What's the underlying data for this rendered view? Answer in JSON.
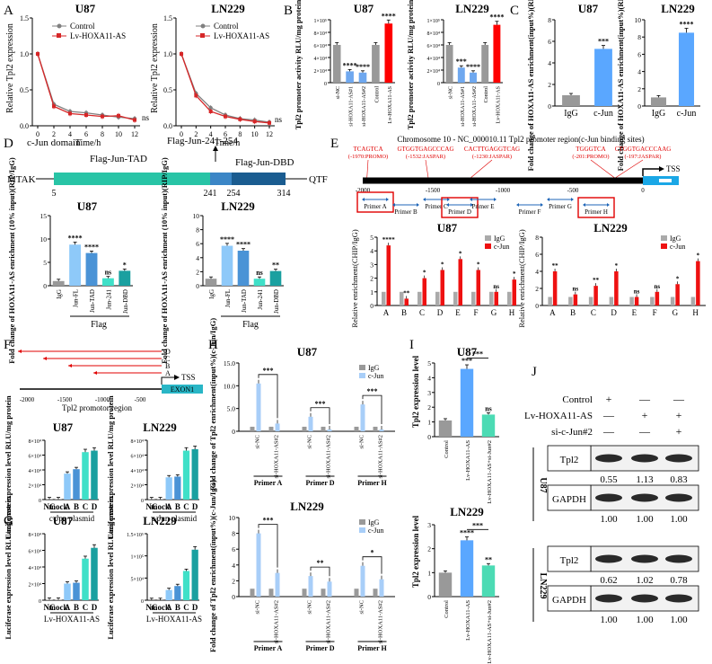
{
  "panels": {
    "A": {
      "label": "A",
      "colors": {
        "control": "#808080",
        "lv": "#d62728"
      },
      "x_ticks": [
        "0",
        "2",
        "4",
        "6",
        "8",
        "10",
        "12"
      ],
      "xlabel": "Time/h",
      "ylabel": "Relative Tpl2 expression",
      "y_ticks": [
        "0.0",
        "0.5",
        "1.0",
        "1.5"
      ],
      "legend": [
        "Control",
        "Lv-HOXA11-AS"
      ],
      "ns": "ns",
      "charts": [
        {
          "title": "U87",
          "control": [
            1.0,
            0.3,
            0.2,
            0.18,
            0.15,
            0.12,
            0.1
          ],
          "lv": [
            1.0,
            0.27,
            0.17,
            0.15,
            0.13,
            0.14,
            0.08
          ]
        },
        {
          "title": "LN229",
          "control": [
            1.0,
            0.45,
            0.25,
            0.15,
            0.1,
            0.08,
            0.05
          ],
          "lv": [
            1.0,
            0.42,
            0.2,
            0.13,
            0.09,
            0.06,
            0.04
          ]
        }
      ]
    },
    "B": {
      "label": "B",
      "ylabel": "Tpl2 promoter activity RLU/mg protein",
      "categories": [
        "si-NC",
        "si-HOXA11-AS#1",
        "si-HOXA11-AS#2",
        "Control",
        "Lv-HOXA11-AS"
      ],
      "colors": [
        "#999999",
        "#6fa8ef",
        "#6fa8ef",
        "#999999",
        "#ff0000"
      ],
      "charts": [
        {
          "title": "U87",
          "values": [
            6,
            1.8,
            1.6,
            6,
            9.4
          ],
          "ymax": 10,
          "y_ticks": [
            "0",
            "2×10⁴",
            "4×10⁴",
            "6×10⁴",
            "8×10⁴",
            "1×10⁵"
          ],
          "stars": [
            "",
            "****",
            "****",
            "",
            "****"
          ]
        },
        {
          "title": "LN229",
          "values": [
            6,
            2.4,
            1.6,
            6,
            9.2
          ],
          "ymax": 10,
          "y_ticks": [
            "0",
            "2×10⁴",
            "4×10⁴",
            "6×10⁴",
            "8×10⁴",
            "1×10⁵"
          ],
          "stars": [
            "",
            "***",
            "****",
            "",
            "****"
          ]
        }
      ]
    },
    "C": {
      "label": "C",
      "ylabel": "Fold change of HOXA11-AS enrichment(input%)(RIP/IgG)",
      "categories": [
        "IgG",
        "c-Jun"
      ],
      "colors": [
        "#999999",
        "#5aa7ff"
      ],
      "charts": [
        {
          "title": "U87",
          "values": [
            1,
            5.3
          ],
          "ymax": 8,
          "y_ticks": [
            "0",
            "2",
            "4",
            "6",
            "8"
          ],
          "stars": [
            "",
            "***"
          ]
        },
        {
          "title": "LN229",
          "values": [
            1,
            8.5
          ],
          "ymax": 10,
          "y_ticks": [
            "0",
            "2",
            "4",
            "6",
            "8",
            "10"
          ],
          "stars": [
            "",
            "****"
          ]
        }
      ]
    },
    "D": {
      "label": "D",
      "domain_title": "c-Jun domain",
      "flag_label": "Flag-Jun-241-254",
      "tad_label": "Flag-Jun-TAD",
      "dbd_label": "Flag-Jun-DBD",
      "left_end": "MTAK",
      "right_end": "QTF",
      "positions": [
        "5",
        "241",
        "254",
        "314"
      ],
      "ylabel": "Fold change of HOXA11-AS enrichment (10% input)(RIP/IgG)",
      "categories": [
        "IgG",
        "Jun-FL",
        "Jun-TAD",
        "Jun-241",
        "Jun-DBD"
      ],
      "colors": [
        "#999999",
        "#8ec9f9",
        "#4a93d6",
        "#3fe0c8",
        "#1aa0a0"
      ],
      "group_label": "Flag",
      "charts": [
        {
          "title": "U87",
          "values": [
            1,
            8.8,
            7,
            1.6,
            3.2
          ],
          "ymax": 15,
          "y_ticks": [
            "0",
            "5",
            "10",
            "15"
          ],
          "stars": [
            "",
            "****",
            "****",
            "ns",
            "*"
          ]
        },
        {
          "title": "LN229",
          "values": [
            1,
            5.7,
            5,
            1,
            2.1
          ],
          "ymax": 10,
          "y_ticks": [
            "0",
            "2",
            "4",
            "6",
            "8",
            "10"
          ],
          "stars": [
            "",
            "****",
            "****",
            "ns",
            "**"
          ]
        }
      ]
    },
    "E": {
      "label": "E",
      "chrom_title": "Chromosome 10 - NC_000010.11    Tpl2 promoter region(c-Jun binding sites)",
      "sites": [
        {
          "seq": "TCAGTCA",
          "pos": "(-1970:PROMO)"
        },
        {
          "seq": "GTGGTGAGCCCAG",
          "pos": "(-1532:JASPAR)"
        },
        {
          "seq": "CACTTGAGGTCAG",
          "pos": "(-1230:JASPAR)"
        },
        {
          "seq": "TGGGTCA",
          "pos": "(-201:PROMO)"
        },
        {
          "seq": "CTGGTGACCCAAG",
          "pos": "(-197:JASPAR)"
        }
      ],
      "tss": "TSS",
      "axis_ticks": [
        "-2000",
        "-1500",
        "-1000",
        "-500",
        "0"
      ],
      "primers": [
        "Primer A",
        "Primer B",
        "Primer C",
        "Primer D",
        "Primer E",
        "Primer F",
        "Primer G",
        "Primer H"
      ],
      "ylabel": "Relative enrichment(CHIP/IgG)",
      "legend": [
        "IgG",
        "c-Jun"
      ],
      "colors": {
        "igg": "#aaaaaa",
        "cjun": "#ee1111"
      },
      "categories": [
        "A",
        "B",
        "C",
        "D",
        "E",
        "F",
        "G",
        "H"
      ],
      "charts": [
        {
          "title": "U87",
          "igg": [
            1,
            1,
            1,
            1,
            1,
            1,
            1,
            1
          ],
          "cjun": [
            4.4,
            0.5,
            2,
            2.6,
            3.4,
            2.6,
            1,
            1.9
          ],
          "ymax": 5,
          "y_ticks": [
            "0",
            "1",
            "2",
            "3",
            "4",
            "5"
          ],
          "stars": [
            "****",
            "**",
            "*",
            "*",
            "*",
            "*",
            "ns",
            "*"
          ]
        },
        {
          "title": "LN229",
          "igg": [
            1,
            1,
            1,
            1,
            1,
            1,
            1,
            1
          ],
          "cjun": [
            4,
            1.3,
            2.3,
            4,
            1,
            1.6,
            2.5,
            5.2
          ],
          "ymax": 8,
          "y_ticks": [
            "0",
            "2",
            "4",
            "6",
            "8"
          ],
          "stars": [
            "**",
            "ns",
            "**",
            "*",
            "ns",
            "ns",
            "*",
            "*"
          ]
        }
      ]
    },
    "F": {
      "label": "F",
      "constructs": [
        "D",
        "C",
        "B",
        "A"
      ],
      "tss": "TSS",
      "exon": "EXON1",
      "axis_ticks": [
        "-2000",
        "-1500",
        "-1000",
        "-500"
      ],
      "region_label": "Tpl2 promotor region",
      "ylabel": "Luciferase expression level RLU/mg protein",
      "categories": [
        "NC",
        "mock",
        "A",
        "B",
        "C",
        "D"
      ],
      "colors": [
        "#999999",
        "#999999",
        "#8ec9f9",
        "#4a93d6",
        "#3fe0c8",
        "#1aa0a0"
      ],
      "group_label": "c-Jun plasmid",
      "charts": [
        {
          "title": "U87",
          "values": [
            0.05,
            0.05,
            3.5,
            4.1,
            6.4,
            6.6
          ],
          "ymax": 8,
          "y_ticks": [
            "0",
            "2×10⁴",
            "4×10⁴",
            "6×10⁴",
            "8×10⁴"
          ]
        },
        {
          "title": "LN229",
          "values": [
            0.05,
            0.05,
            3,
            3.1,
            6.6,
            6.8
          ],
          "ymax": 8,
          "y_ticks": [
            "0",
            "2×10⁴",
            "4×10⁴",
            "6×10⁴",
            "8×10⁴"
          ]
        }
      ]
    },
    "G": {
      "label": "G",
      "ylabel": "Luciferase expression level RLU/mg protein",
      "categories": [
        "NC",
        "mock",
        "A",
        "B",
        "C",
        "D"
      ],
      "colors": [
        "#999999",
        "#999999",
        "#8ec9f9",
        "#4a93d6",
        "#3fe0c8",
        "#1aa0a0"
      ],
      "group_label": "Lv-HOXA11-AS",
      "charts": [
        {
          "title": "U87",
          "values": [
            0.05,
            0.05,
            2,
            2.1,
            5,
            6.3
          ],
          "ymax": 8,
          "y_ticks": [
            "0",
            "2×10⁴",
            "4×10⁴",
            "6×10⁴",
            "8×10⁴"
          ]
        },
        {
          "title": "LN229",
          "values": [
            0.05,
            0.05,
            2.3,
            3.2,
            6.6,
            11.4
          ],
          "ymax": 15,
          "y_ticks": [
            "0",
            "5×10⁴",
            "1×10⁵",
            "1.5×10⁵"
          ]
        }
      ]
    },
    "H": {
      "label": "H",
      "ylabel": "Fold change of Tpl2 enrichment(input%)(c-Jun/IgG)",
      "legend": [
        "IgG",
        "c-Jun"
      ],
      "colors": {
        "igg": "#999999",
        "cjun": "#a8cef8"
      },
      "sub": [
        "si-NC",
        "si-HOXA11-AS#2"
      ],
      "groups": [
        "Primer A",
        "Primer D",
        "Primer H"
      ],
      "charts": [
        {
          "title": "U87",
          "pairs": [
            [
              1,
              10.5
            ],
            [
              1,
              1.7
            ],
            [
              1,
              3.2
            ],
            [
              1,
              0.4
            ],
            [
              1,
              5.9
            ],
            [
              1,
              0.4
            ]
          ],
          "ymax": 15,
          "y_ticks": [
            "0",
            "5.0",
            "10.0",
            "15.0"
          ],
          "brackets": [
            "***",
            "***",
            "***"
          ]
        },
        {
          "title": "LN229",
          "pairs": [
            [
              1,
              8
            ],
            [
              1,
              3
            ],
            [
              1,
              2.6
            ],
            [
              1,
              1.9
            ],
            [
              1,
              3.9
            ],
            [
              1,
              2.2
            ]
          ],
          "ymax": 10,
          "y_ticks": [
            "0",
            "2",
            "4",
            "6",
            "8",
            "10"
          ],
          "brackets": [
            "***",
            "**",
            "*"
          ]
        }
      ]
    },
    "I": {
      "label": "I",
      "ylabel": "Tpl2 expression level",
      "categories": [
        "Control",
        "Lv-HOXA11-AS",
        "Lv-HOXA11-AS+si-Jun#2"
      ],
      "colors": [
        "#999999",
        "#5aa7ff",
        "#4cdbb4"
      ],
      "charts": [
        {
          "title": "U87",
          "values": [
            1.1,
            4.6,
            1.5
          ],
          "ymax": 5,
          "y_ticks": [
            "0",
            "1",
            "2",
            "3",
            "4",
            "5"
          ],
          "stars": [
            "",
            "***",
            "ns"
          ],
          "bracket": "***"
        },
        {
          "title": "LN229",
          "values": [
            1,
            2.35,
            1.3
          ],
          "ymax": 3,
          "y_ticks": [
            "0",
            "1",
            "2",
            "3"
          ],
          "stars": [
            "",
            "****",
            "**"
          ],
          "bracket": "***"
        }
      ]
    },
    "J": {
      "label": "J",
      "rows": [
        "Control",
        "Lv-HOXA11-AS",
        "si-c-Jun#2"
      ],
      "marks": [
        [
          "+",
          "—",
          "—"
        ],
        [
          "—",
          "+",
          "+"
        ],
        [
          "—",
          "—",
          "+"
        ]
      ],
      "cell_lines": [
        "U87",
        "LN229"
      ],
      "blots": [
        {
          "name": "Tpl2",
          "values": [
            "0.55",
            "1.13",
            "0.83"
          ]
        },
        {
          "name": "GAPDH",
          "values": [
            "1.00",
            "1.00",
            "1.00"
          ]
        },
        {
          "name": "Tpl2",
          "values": [
            "0.62",
            "1.02",
            "0.78"
          ]
        },
        {
          "name": "GAPDH",
          "values": [
            "1.00",
            "1.00",
            "1.00"
          ]
        }
      ]
    }
  }
}
